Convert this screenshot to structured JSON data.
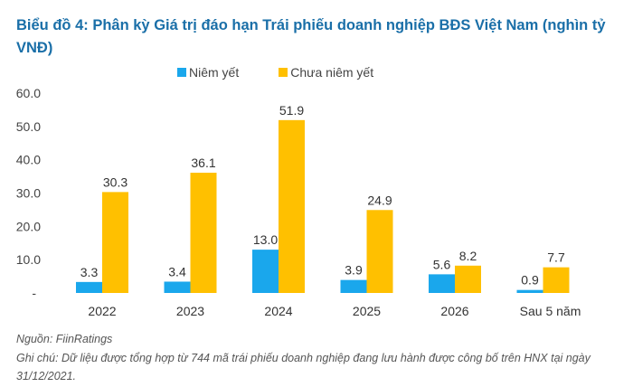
{
  "chart_data": {
    "type": "bar",
    "title": "Biểu đồ 4: Phân kỳ Giá trị đáo hạn Trái phiếu doanh nghiệp BĐS Việt Nam (nghìn tỷ VNĐ)",
    "categories": [
      "2022",
      "2023",
      "2024",
      "2025",
      "2026",
      "Sau 5 năm"
    ],
    "series": [
      {
        "name": "Niêm yết",
        "color": "#1aa7ec",
        "values": [
          3.3,
          3.4,
          13.0,
          3.9,
          5.6,
          0.9
        ]
      },
      {
        "name": "Chưa niêm yết",
        "color": "#ffc000",
        "values": [
          30.3,
          36.1,
          51.9,
          24.9,
          8.2,
          7.7
        ]
      }
    ],
    "ylim": [
      0,
      60
    ],
    "yticks": [
      "-",
      "10.0",
      "20.0",
      "30.0",
      "40.0",
      "50.0",
      "60.0"
    ],
    "grid": false,
    "legend": "top"
  },
  "footer": {
    "source": "Nguồn: FiinRatings",
    "note": "Ghi chú: Dữ liệu được tổng hợp từ 744 mã trái phiếu doanh nghiệp đang lưu hành được công bố trên HNX tại ngày 31/12/2021."
  }
}
